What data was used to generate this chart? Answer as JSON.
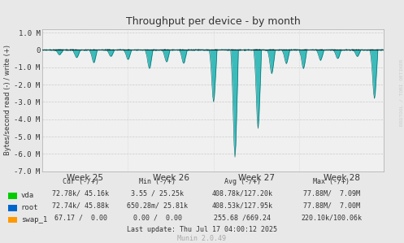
{
  "title": "Throughput per device - by month",
  "ylabel": "Bytes/second read (-) / write (+)",
  "xlabel_ticks": [
    "Week 25",
    "Week 26",
    "Week 27",
    "Week 28"
  ],
  "ylim": [
    -7000000,
    1200000
  ],
  "yticks": [
    -7000000,
    -6000000,
    -5000000,
    -4000000,
    -3000000,
    -2000000,
    -1000000,
    0,
    1000000
  ],
  "ytick_labels": [
    "-7.0 M",
    "-6.0 M",
    "-5.0 M",
    "-4.0 M",
    "-3.0 M",
    "-2.0 M",
    "-1.0 M",
    "0",
    "1.0 M"
  ],
  "bg_color": "#e8e8e8",
  "plot_bg_color": "#f0f0f0",
  "vda_color": "#00cc00",
  "root_color": "#0066cc",
  "swap_color": "#ff9900",
  "teal_fill": "#00aaaa",
  "teal_line": "#006666",
  "zero_line_color": "#000000",
  "legend_items": [
    {
      "label": "vda",
      "color": "#00cc00"
    },
    {
      "label": "root",
      "color": "#0066cc"
    },
    {
      "label": "swap_1",
      "color": "#ff9900"
    }
  ],
  "table_rows": [
    [
      "vda",
      "72.78k/ 45.16k",
      "3.55 / 25.25k",
      "408.78k/127.20k",
      "77.88M/  7.09M"
    ],
    [
      "root",
      "72.74k/ 45.88k",
      "650.28m/ 25.81k",
      "408.53k/127.95k",
      "77.88M/  7.00M"
    ],
    [
      "swap_1",
      "67.17 /  0.00",
      "0.00 /  0.00",
      "255.68 /669.24",
      "220.10k/100.06k"
    ]
  ],
  "last_update": "Last update: Thu Jul 17 04:00:12 2025",
  "munin_version": "Munin 2.0.49",
  "rrdtool_label": "RRDTOOL / TOBI OETIKER",
  "n_points": 400
}
